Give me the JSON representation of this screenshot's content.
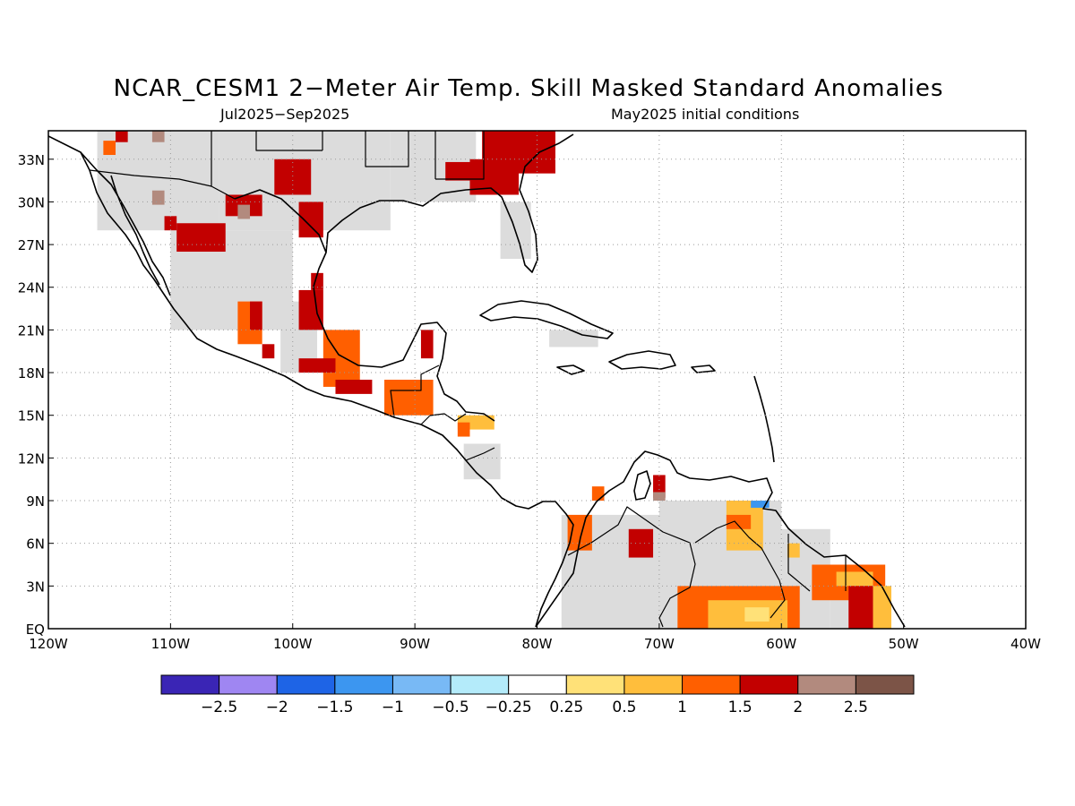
{
  "title": "NCAR_CESM1 2−Meter Air Temp. Skill Masked Standard Anomalies",
  "subtitle_left": "Jul2025−Sep2025",
  "subtitle_right": "May2025 initial conditions",
  "lat_ticks": [
    "33N",
    "30N",
    "27N",
    "24N",
    "21N",
    "18N",
    "15N",
    "12N",
    "9N",
    "6N",
    "3N",
    "EQ"
  ],
  "lon_ticks": [
    "120W",
    "110W",
    "100W",
    "90W",
    "80W",
    "70W",
    "60W",
    "50W",
    "40W"
  ],
  "map_extent": {
    "lon": [
      -120,
      -40
    ],
    "lat": [
      0,
      35
    ]
  },
  "grid": "dotted",
  "mask_color": "#dcdcdc",
  "colorbar": {
    "labels": [
      "−2.5",
      "−2",
      "−1.5",
      "−1",
      "−0.5",
      "−0.25",
      "0.25",
      "0.5",
      "1",
      "1.5",
      "2",
      "2.5"
    ],
    "colors": [
      "#3a25b5",
      "#9f86f2",
      "#1e64e6",
      "#3c96f0",
      "#78b9f5",
      "#b4ebfa",
      "#ffffff",
      "#ffe178",
      "#ffbe3c",
      "#ff5f00",
      "#c20000",
      "#b28a7e",
      "#7c5447"
    ]
  },
  "anomaly_regions": [
    {
      "name": "ky-tn",
      "color": "#c20000",
      "lon": [
        -84.5,
        -78.5
      ],
      "lat": [
        32,
        35
      ]
    },
    {
      "name": "georgia",
      "color": "#c20000",
      "lon": [
        -85.5,
        -81.5
      ],
      "lat": [
        30.5,
        33
      ]
    },
    {
      "name": "al-fl",
      "color": "#c20000",
      "lon": [
        -87.5,
        -84.5
      ],
      "lat": [
        31.5,
        32.8
      ]
    },
    {
      "name": "texas-north",
      "color": "#c20000",
      "lon": [
        -101.5,
        -98.5
      ],
      "lat": [
        30.5,
        33
      ]
    },
    {
      "name": "texas-south",
      "color": "#c20000",
      "lon": [
        -99.5,
        -97.5
      ],
      "lat": [
        27.5,
        30
      ]
    },
    {
      "name": "chihuahua",
      "color": "#c20000",
      "lon": [
        -105.5,
        -102.5
      ],
      "lat": [
        29,
        30.5
      ]
    },
    {
      "name": "sonora-a",
      "color": "#c20000",
      "lon": [
        -109.5,
        -105.5
      ],
      "lat": [
        26.5,
        28.5
      ]
    },
    {
      "name": "sonora-b",
      "color": "#c20000",
      "lon": [
        -110.5,
        -109.5
      ],
      "lat": [
        28,
        29
      ]
    },
    {
      "name": "baja-top",
      "color": "#c20000",
      "lon": [
        -114.5,
        -113.5
      ],
      "lat": [
        34.2,
        35
      ]
    },
    {
      "name": "baja-orange",
      "color": "#ff5f00",
      "lon": [
        -115.5,
        -114.5
      ],
      "lat": [
        33.3,
        34.3
      ]
    },
    {
      "name": "brown-1",
      "color": "#b28a7e",
      "lon": [
        -111.5,
        -110.5
      ],
      "lat": [
        34.2,
        35
      ]
    },
    {
      "name": "brown-2",
      "color": "#b28a7e",
      "lon": [
        -111.5,
        -110.5
      ],
      "lat": [
        29.8,
        30.8
      ]
    },
    {
      "name": "brown-3",
      "color": "#b28a7e",
      "lon": [
        -104.5,
        -103.5
      ],
      "lat": [
        28.8,
        29.8
      ]
    },
    {
      "name": "sinaloa",
      "color": "#ff5f00",
      "lon": [
        -104.5,
        -102.5
      ],
      "lat": [
        20,
        23
      ]
    },
    {
      "name": "sinaloa-red",
      "color": "#c20000",
      "lon": [
        -103.5,
        -102.5
      ],
      "lat": [
        21,
        23
      ]
    },
    {
      "name": "zacatecas",
      "color": "#c20000",
      "lon": [
        -99.5,
        -97.5
      ],
      "lat": [
        21,
        23.8
      ]
    },
    {
      "name": "tamaulipas",
      "color": "#c20000",
      "lon": [
        -98.5,
        -97.5
      ],
      "lat": [
        23.8,
        25
      ]
    },
    {
      "name": "jalisco",
      "color": "#c20000",
      "lon": [
        -102.5,
        -101.5
      ],
      "lat": [
        19,
        20
      ]
    },
    {
      "name": "central-mx",
      "color": "#ff5f00",
      "lon": [
        -97.5,
        -94.5
      ],
      "lat": [
        17,
        21
      ]
    },
    {
      "name": "central-mx-red",
      "color": "#c20000",
      "lon": [
        -99.5,
        -96.5
      ],
      "lat": [
        18,
        19
      ]
    },
    {
      "name": "oaxaca-red",
      "color": "#c20000",
      "lon": [
        -96.5,
        -93.5
      ],
      "lat": [
        16.5,
        17.5
      ]
    },
    {
      "name": "yucatan",
      "color": "#c20000",
      "lon": [
        -89.5,
        -88.5
      ],
      "lat": [
        19,
        21
      ]
    },
    {
      "name": "guatemala",
      "color": "#ff5f00",
      "lon": [
        -92.5,
        -88.5
      ],
      "lat": [
        15,
        17.5
      ]
    },
    {
      "name": "honduras",
      "color": "#ffbe3c",
      "lon": [
        -86.5,
        -83.5
      ],
      "lat": [
        14,
        15
      ]
    },
    {
      "name": "honduras-o",
      "color": "#ff5f00",
      "lon": [
        -86.5,
        -85.5
      ],
      "lat": [
        13.5,
        14.5
      ]
    },
    {
      "name": "colombia-w",
      "color": "#ff5f00",
      "lon": [
        -77.5,
        -75.5
      ],
      "lat": [
        5.5,
        8
      ]
    },
    {
      "name": "colombia-n",
      "color": "#ff5f00",
      "lon": [
        -75.5,
        -74.5
      ],
      "lat": [
        9,
        10
      ]
    },
    {
      "name": "venezuela-red",
      "color": "#c20000",
      "lon": [
        -72.5,
        -70.5
      ],
      "lat": [
        5,
        7
      ]
    },
    {
      "name": "maracaibo",
      "color": "#c20000",
      "lon": [
        -70.5,
        -69.5
      ],
      "lat": [
        9.2,
        10.8
      ]
    },
    {
      "name": "maracaibo-b",
      "color": "#b28a7e",
      "lon": [
        -70.5,
        -69.5
      ],
      "lat": [
        9,
        9.6
      ]
    },
    {
      "name": "venezuela-e",
      "color": "#ffbe3c",
      "lon": [
        -64.5,
        -61.5
      ],
      "lat": [
        5.5,
        9
      ]
    },
    {
      "name": "venezuela-e2",
      "color": "#ff5f00",
      "lon": [
        -64.5,
        -62.5
      ],
      "lat": [
        7,
        8
      ]
    },
    {
      "name": "trinidad-blue",
      "color": "#3c96f0",
      "lon": [
        -62.5,
        -61
      ],
      "lat": [
        8.5,
        9
      ]
    },
    {
      "name": "guyana-y",
      "color": "#ffbe3c",
      "lon": [
        -59.5,
        -58.5
      ],
      "lat": [
        5,
        6
      ]
    },
    {
      "name": "suriname",
      "color": "#ff5f00",
      "lon": [
        -57.5,
        -51.5
      ],
      "lat": [
        2,
        4.5
      ]
    },
    {
      "name": "suriname-y",
      "color": "#ffbe3c",
      "lon": [
        -55.5,
        -52.5
      ],
      "lat": [
        3,
        4
      ]
    },
    {
      "name": "guiana-red",
      "color": "#c20000",
      "lon": [
        -54.5,
        -52.5
      ],
      "lat": [
        0,
        3
      ]
    },
    {
      "name": "amapa-y",
      "color": "#ffbe3c",
      "lon": [
        -52.5,
        -51
      ],
      "lat": [
        0,
        3
      ]
    },
    {
      "name": "amazon-o",
      "color": "#ff5f00",
      "lon": [
        -68.5,
        -58.5
      ],
      "lat": [
        0,
        3
      ]
    },
    {
      "name": "amazon-y",
      "color": "#ffbe3c",
      "lon": [
        -66,
        -59.5
      ],
      "lat": [
        0,
        2
      ]
    },
    {
      "name": "amazon-yy",
      "color": "#ffe178",
      "lon": [
        -63,
        -61
      ],
      "lat": [
        0.5,
        1.5
      ]
    }
  ],
  "mask_regions": [
    {
      "name": "us-west",
      "lon": [
        -116,
        -106
      ],
      "lat": [
        28,
        35
      ]
    },
    {
      "name": "us-plains",
      "lon": [
        -106,
        -92
      ],
      "lat": [
        28,
        35
      ]
    },
    {
      "name": "us-south",
      "lon": [
        -92,
        -85
      ],
      "lat": [
        30,
        35
      ]
    },
    {
      "name": "mexico-nw",
      "lon": [
        -110,
        -100
      ],
      "lat": [
        21,
        28
      ]
    },
    {
      "name": "mexico-central",
      "lon": [
        -101,
        -98
      ],
      "lat": [
        18,
        23
      ]
    },
    {
      "name": "florida",
      "lon": [
        -83,
        -80.5
      ],
      "lat": [
        26,
        30
      ]
    },
    {
      "name": "cuba-east",
      "lon": [
        -79,
        -75
      ],
      "lat": [
        19.8,
        21
      ]
    },
    {
      "name": "colombia",
      "lon": [
        -78,
        -68
      ],
      "lat": [
        0,
        8
      ]
    },
    {
      "name": "venezuela",
      "lon": [
        -70,
        -60
      ],
      "lat": [
        2,
        9
      ]
    },
    {
      "name": "guyana",
      "lon": [
        -60,
        -56
      ],
      "lat": [
        0,
        7
      ]
    },
    {
      "name": "brazil-n",
      "lon": [
        -56,
        -51
      ],
      "lat": [
        0,
        3
      ]
    },
    {
      "name": "nicaragua",
      "lon": [
        -86,
        -83
      ],
      "lat": [
        10.5,
        13
      ]
    }
  ]
}
